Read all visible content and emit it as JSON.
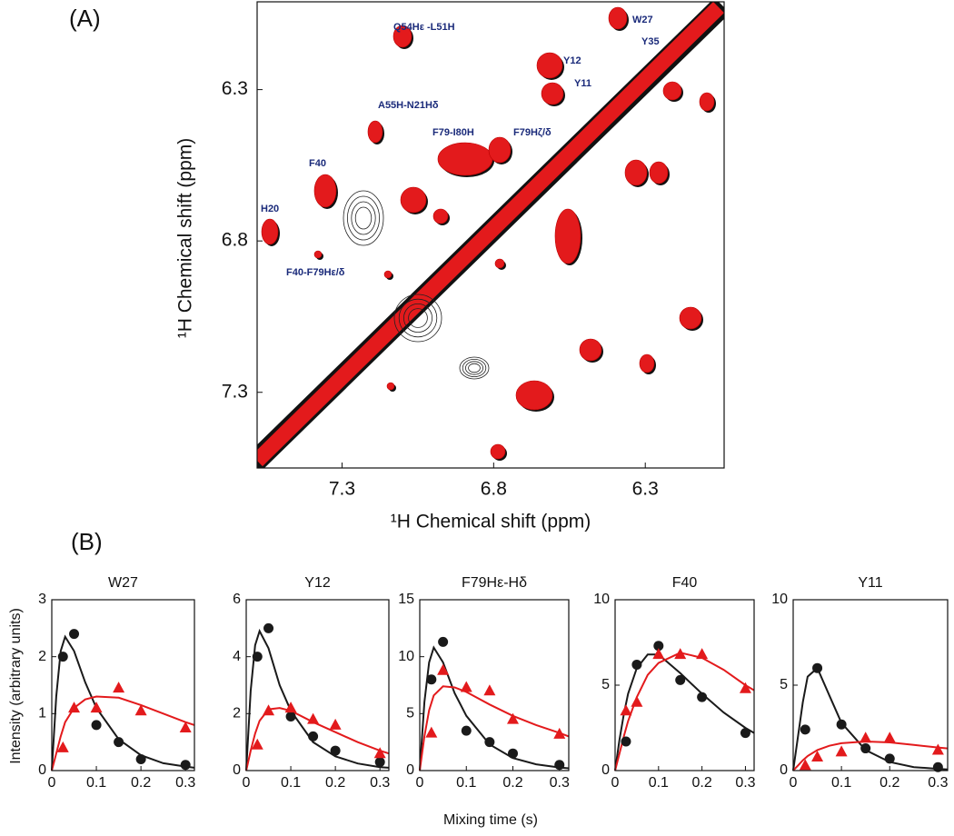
{
  "figure": {
    "panel_labels": [
      "(A)",
      "(B)"
    ],
    "y_label": "Intensity (arbitrary units)",
    "x_label": "Mixing time (s)"
  },
  "chart_data": [
    {
      "type": "contour",
      "x_label": "¹H Chemical shift (ppm)",
      "y_label": "¹H Chemical shift (ppm)",
      "xlim": [
        7.58,
        6.04
      ],
      "ylim": [
        7.55,
        6.01
      ],
      "xticks": [
        7.3,
        6.8,
        6.3
      ],
      "yticks": [
        7.3,
        6.8,
        6.3
      ],
      "annotations": [
        "Q54Hε -L51H",
        "Y12",
        "Y11",
        "W27",
        "Y35",
        "A55H-N21Hδ",
        "F79-I80H",
        "F79Hζ/δ",
        "F40",
        "H20",
        "F40-F79Hε/δ"
      ]
    },
    {
      "type": "scatter",
      "title": "W27",
      "x": [
        0.025,
        0.05,
        0.1,
        0.15,
        0.2,
        0.3
      ],
      "xlim": [
        0,
        0.32
      ],
      "xticks": [
        0,
        0.1,
        0.2,
        0.3
      ],
      "ylim": [
        0,
        3
      ],
      "yticks": [
        0,
        1,
        2,
        3
      ],
      "series": [
        {
          "color": "#1a1a1a",
          "marker": "circle",
          "values": [
            2.0,
            2.4,
            0.8,
            0.5,
            0.2,
            0.1
          ]
        },
        {
          "color": "#e31a1c",
          "marker": "triangle",
          "values": [
            0.4,
            1.1,
            1.1,
            1.45,
            1.05,
            0.75
          ]
        }
      ],
      "fit_x": [
        0,
        0.01,
        0.02,
        0.03,
        0.05,
        0.075,
        0.1,
        0.15,
        0.2,
        0.25,
        0.3,
        0.32
      ],
      "fits": [
        {
          "color": "#1a1a1a",
          "values": [
            0,
            1.3,
            2.1,
            2.35,
            2.1,
            1.55,
            1.1,
            0.55,
            0.27,
            0.13,
            0.07,
            0.05
          ]
        },
        {
          "color": "#e31a1c",
          "values": [
            0,
            0.3,
            0.6,
            0.85,
            1.1,
            1.25,
            1.3,
            1.28,
            1.15,
            1.0,
            0.85,
            0.8
          ]
        }
      ]
    },
    {
      "type": "scatter",
      "title": "Y12",
      "x": [
        0.025,
        0.05,
        0.1,
        0.15,
        0.2,
        0.3
      ],
      "xlim": [
        0,
        0.32
      ],
      "xticks": [
        0,
        0.1,
        0.2,
        0.3
      ],
      "ylim": [
        0,
        6
      ],
      "yticks": [
        0,
        2,
        4,
        6
      ],
      "series": [
        {
          "color": "#1a1a1a",
          "marker": "circle",
          "values": [
            4.0,
            5.0,
            1.9,
            1.2,
            0.7,
            0.3
          ]
        },
        {
          "color": "#e31a1c",
          "marker": "triangle",
          "values": [
            0.9,
            2.1,
            2.2,
            1.8,
            1.6,
            0.6
          ]
        }
      ],
      "fit_x": [
        0,
        0.01,
        0.02,
        0.03,
        0.05,
        0.075,
        0.1,
        0.15,
        0.2,
        0.25,
        0.3,
        0.32
      ],
      "fits": [
        {
          "color": "#1a1a1a",
          "values": [
            0,
            2.8,
            4.4,
            4.9,
            4.3,
            3.0,
            2.1,
            1.0,
            0.5,
            0.25,
            0.12,
            0.1
          ]
        },
        {
          "color": "#e31a1c",
          "values": [
            0,
            0.7,
            1.3,
            1.75,
            2.15,
            2.2,
            2.1,
            1.7,
            1.35,
            1.0,
            0.7,
            0.6
          ]
        }
      ]
    },
    {
      "type": "scatter",
      "title": "F79Hε-Hδ",
      "x": [
        0.025,
        0.05,
        0.1,
        0.15,
        0.2,
        0.3
      ],
      "xlim": [
        0,
        0.32
      ],
      "xticks": [
        0,
        0.1,
        0.2,
        0.3
      ],
      "ylim": [
        0,
        15
      ],
      "yticks": [
        0,
        5,
        10,
        15
      ],
      "series": [
        {
          "color": "#1a1a1a",
          "marker": "circle",
          "values": [
            8,
            11.3,
            3.5,
            2.5,
            1.5,
            0.5
          ]
        },
        {
          "color": "#e31a1c",
          "marker": "triangle",
          "values": [
            3.3,
            8.8,
            7.3,
            7.0,
            4.5,
            3.2
          ]
        }
      ],
      "fit_x": [
        0,
        0.01,
        0.02,
        0.03,
        0.05,
        0.075,
        0.1,
        0.15,
        0.2,
        0.25,
        0.3,
        0.32
      ],
      "fits": [
        {
          "color": "#1a1a1a",
          "values": [
            0,
            6,
            9.5,
            10.8,
            9.5,
            6.8,
            4.8,
            2.3,
            1.1,
            0.55,
            0.27,
            0.2
          ]
        },
        {
          "color": "#e31a1c",
          "values": [
            0,
            3,
            5.3,
            6.6,
            7.4,
            7.3,
            6.9,
            5.8,
            4.8,
            4.0,
            3.3,
            3.0
          ]
        }
      ]
    },
    {
      "type": "scatter",
      "title": "F40",
      "x": [
        0.025,
        0.05,
        0.1,
        0.15,
        0.2,
        0.3
      ],
      "xlim": [
        0,
        0.32
      ],
      "xticks": [
        0,
        0.1,
        0.2,
        0.3
      ],
      "ylim": [
        0,
        10
      ],
      "yticks": [
        0,
        5,
        10
      ],
      "series": [
        {
          "color": "#1a1a1a",
          "marker": "circle",
          "values": [
            1.7,
            6.2,
            7.3,
            5.3,
            4.3,
            2.2
          ]
        },
        {
          "color": "#e31a1c",
          "marker": "triangle",
          "values": [
            3.5,
            4.0,
            6.8,
            6.8,
            6.8,
            4.8
          ]
        }
      ],
      "fit_x": [
        0,
        0.01,
        0.02,
        0.03,
        0.05,
        0.075,
        0.1,
        0.15,
        0.2,
        0.25,
        0.3,
        0.32
      ],
      "fits": [
        {
          "color": "#1a1a1a",
          "values": [
            0,
            1.8,
            3.3,
            4.5,
            6.0,
            6.8,
            6.8,
            5.7,
            4.5,
            3.4,
            2.5,
            2.2
          ]
        },
        {
          "color": "#e31a1c",
          "values": [
            0,
            1.0,
            2.0,
            2.9,
            4.3,
            5.6,
            6.3,
            6.9,
            6.6,
            5.9,
            5.0,
            4.7
          ]
        }
      ]
    },
    {
      "type": "scatter",
      "title": "Y11",
      "x": [
        0.025,
        0.05,
        0.1,
        0.15,
        0.2,
        0.3
      ],
      "xlim": [
        0,
        0.32
      ],
      "xticks": [
        0,
        0.1,
        0.2,
        0.3
      ],
      "ylim": [
        0,
        10
      ],
      "yticks": [
        0,
        5,
        10
      ],
      "series": [
        {
          "color": "#1a1a1a",
          "marker": "circle",
          "values": [
            2.4,
            6.0,
            2.7,
            1.3,
            0.7,
            0.2
          ]
        },
        {
          "color": "#e31a1c",
          "marker": "triangle",
          "values": [
            0.3,
            0.8,
            1.1,
            1.9,
            1.9,
            1.2
          ]
        }
      ],
      "fit_x": [
        0,
        0.01,
        0.02,
        0.03,
        0.05,
        0.075,
        0.1,
        0.15,
        0.2,
        0.25,
        0.3,
        0.32
      ],
      "fits": [
        {
          "color": "#1a1a1a",
          "values": [
            0,
            2.0,
            4.0,
            5.5,
            6.0,
            4.4,
            2.8,
            1.2,
            0.5,
            0.2,
            0.1,
            0.07
          ]
        },
        {
          "color": "#e31a1c",
          "values": [
            0,
            0.3,
            0.6,
            0.85,
            1.2,
            1.45,
            1.6,
            1.7,
            1.65,
            1.5,
            1.35,
            1.3
          ]
        }
      ]
    }
  ]
}
